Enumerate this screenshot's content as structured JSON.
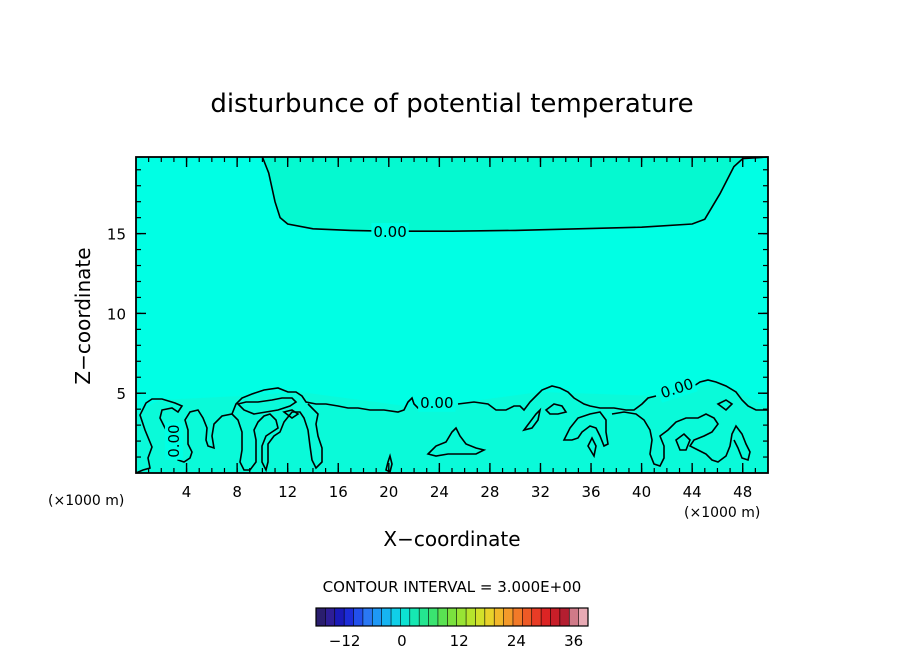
{
  "chart_data": {
    "type": "heatmap",
    "title": "disturbunce of potential temperature",
    "xlabel": "X−coordinate",
    "ylabel": "Z−coordinate",
    "x_unit_label": "(×1000 m)",
    "y_unit_label": "(×1000 m)",
    "xlim": [
      0,
      50
    ],
    "ylim": [
      0,
      19.8
    ],
    "x_ticks": [
      4,
      8,
      12,
      16,
      20,
      24,
      28,
      32,
      36,
      40,
      44,
      48
    ],
    "y_ticks": [
      5,
      10,
      15
    ],
    "field_color": "#00ffe4",
    "upper_region_color": "#05f9d0",
    "contour_interval_text": "CONTOUR INTERVAL = 3.000E+00",
    "contour_level": 0.0,
    "contour_labels": [
      {
        "text": "0.00",
        "x": 20.1,
        "z": 15.1
      },
      {
        "text": "0.00",
        "x": 23.8,
        "z": 4.4
      },
      {
        "text": "0.00",
        "x": 42.8,
        "z": 5.3
      },
      {
        "text": "0.00",
        "x": 3.0,
        "z": 2.0
      }
    ],
    "upper_contour": [
      [
        10,
        19.8
      ],
      [
        10.5,
        18.8
      ],
      [
        11,
        17.0
      ],
      [
        11.4,
        16.0
      ],
      [
        12,
        15.6
      ],
      [
        14,
        15.3
      ],
      [
        17,
        15.2
      ],
      [
        20,
        15.15
      ],
      [
        25,
        15.15
      ],
      [
        30,
        15.2
      ],
      [
        35,
        15.3
      ],
      [
        40,
        15.4
      ],
      [
        44,
        15.6
      ],
      [
        45,
        15.9
      ],
      [
        46.2,
        17.5
      ],
      [
        47.3,
        19.2
      ],
      [
        48,
        19.7
      ],
      [
        50,
        19.8
      ]
    ],
    "colorbar": {
      "ticks": [
        -12,
        0,
        12,
        24,
        36
      ],
      "min": -18,
      "max": 39,
      "colors": [
        "#2a1e6e",
        "#2e1e96",
        "#1a1ab8",
        "#1c2cd8",
        "#2250ec",
        "#2a78f4",
        "#1e98f6",
        "#16b4f2",
        "#10cfe8",
        "#0ce2d2",
        "#16e8b2",
        "#24e690",
        "#3ae470",
        "#5ae252",
        "#7ae23e",
        "#98e434",
        "#b6e42c",
        "#d2e02a",
        "#e8d22a",
        "#f2b82a",
        "#f49a2a",
        "#f27a28",
        "#ee5a26",
        "#e83c26",
        "#dc2424",
        "#c81e28",
        "#b41e30",
        "#d07a88",
        "#e8aab4"
      ]
    }
  }
}
